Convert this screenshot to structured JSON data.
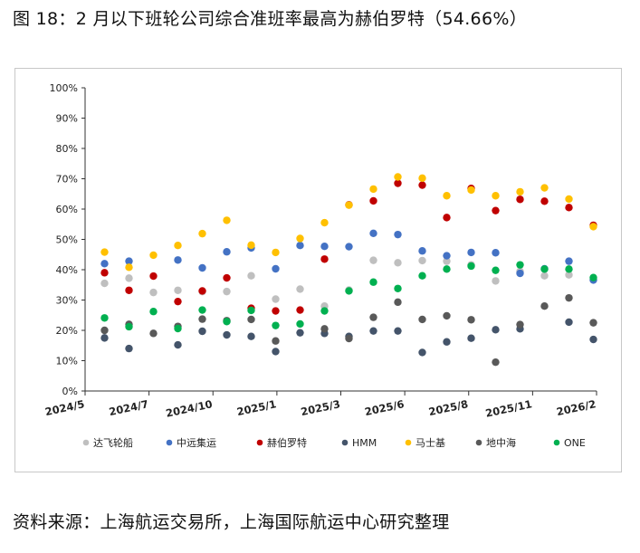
{
  "figure_title": "图 18：2 月以下班轮公司综合准班率最高为赫伯罗特（54.66%）",
  "source_note": "资料来源：上海航运交易所，上海国际航运中心研究整理",
  "chart_data": {
    "type": "scatter",
    "title": "2 月以下班轮公司综合准班率最高为赫伯罗特（54.66%）",
    "xlabel": "",
    "ylabel": "",
    "ylim": [
      0,
      100
    ],
    "y_ticks": [
      "0%",
      "10%",
      "20%",
      "30%",
      "40%",
      "50%",
      "60%",
      "70%",
      "80%",
      "90%",
      "100%"
    ],
    "x_tick_labels": [
      "2024/5",
      "2024/7",
      "2024/10",
      "2025/1",
      "2025/3",
      "2025/6",
      "2025/8",
      "2025/11",
      "2026/2"
    ],
    "months": [
      "2024/6",
      "2024/7",
      "2024/8",
      "2024/9",
      "2024/10",
      "2024/11",
      "2024/12",
      "2025/1",
      "2025/2",
      "2025/3",
      "2025/4",
      "2025/5",
      "2025/6",
      "2025/7",
      "2025/8",
      "2025/9",
      "2025/10",
      "2025/11",
      "2025/12",
      "2026/1",
      "2026/2"
    ],
    "legend_position": "bottom",
    "series": [
      {
        "name": "达飞轮船",
        "color": "#bfbfbf",
        "values": [
          35.5,
          37.2,
          32.5,
          33.2,
          32.8,
          32.8,
          38.0,
          30.3,
          33.6,
          28.0,
          33.3,
          43.1,
          42.3,
          43.0,
          42.8,
          41.6,
          36.3,
          39.5,
          38.0,
          38.3,
          36.8
        ]
      },
      {
        "name": "中远集运",
        "color": "#4472c4",
        "values": [
          42.0,
          42.8,
          null,
          43.2,
          40.6,
          45.9,
          47.2,
          40.3,
          48.0,
          47.7,
          47.6,
          52.0,
          51.6,
          46.2,
          44.6,
          45.7,
          45.6,
          38.8,
          40.3,
          42.8,
          36.6
        ]
      },
      {
        "name": "赫伯罗特",
        "color": "#c00000",
        "values": [
          39.0,
          33.2,
          37.9,
          29.5,
          33.0,
          37.3,
          27.3,
          26.4,
          26.7,
          43.5,
          61.4,
          62.7,
          68.5,
          67.9,
          57.2,
          66.8,
          59.5,
          63.2,
          62.6,
          60.5,
          54.66
        ]
      },
      {
        "name": "HMM",
        "color": "#44546a",
        "values": [
          17.5,
          14.0,
          null,
          15.2,
          19.7,
          18.5,
          18.0,
          13.0,
          19.2,
          19.0,
          18.0,
          19.8,
          19.8,
          12.7,
          16.2,
          17.4,
          20.2,
          20.5,
          null,
          22.7,
          17.0
        ]
      },
      {
        "name": "马士基",
        "color": "#ffc000",
        "values": [
          45.8,
          40.8,
          44.8,
          48.0,
          51.9,
          56.3,
          48.1,
          45.7,
          50.3,
          55.5,
          61.3,
          66.6,
          70.6,
          70.2,
          64.4,
          66.3,
          64.4,
          65.7,
          67.0,
          63.3,
          54.2
        ]
      },
      {
        "name": "地中海",
        "color": "#595959",
        "values": [
          20.0,
          22.0,
          19.0,
          21.3,
          23.7,
          23.2,
          23.6,
          16.5,
          null,
          20.5,
          17.3,
          24.3,
          29.3,
          23.6,
          24.8,
          23.5,
          9.5,
          21.9,
          28.0,
          30.7,
          22.5
        ]
      },
      {
        "name": "ONE",
        "color": "#00b050",
        "values": [
          24.1,
          21.2,
          26.2,
          20.6,
          26.7,
          22.9,
          26.6,
          21.6,
          22.1,
          26.4,
          33.0,
          35.9,
          33.8,
          38.0,
          40.2,
          41.2,
          39.8,
          41.6,
          40.2,
          40.2,
          37.4
        ]
      }
    ]
  }
}
